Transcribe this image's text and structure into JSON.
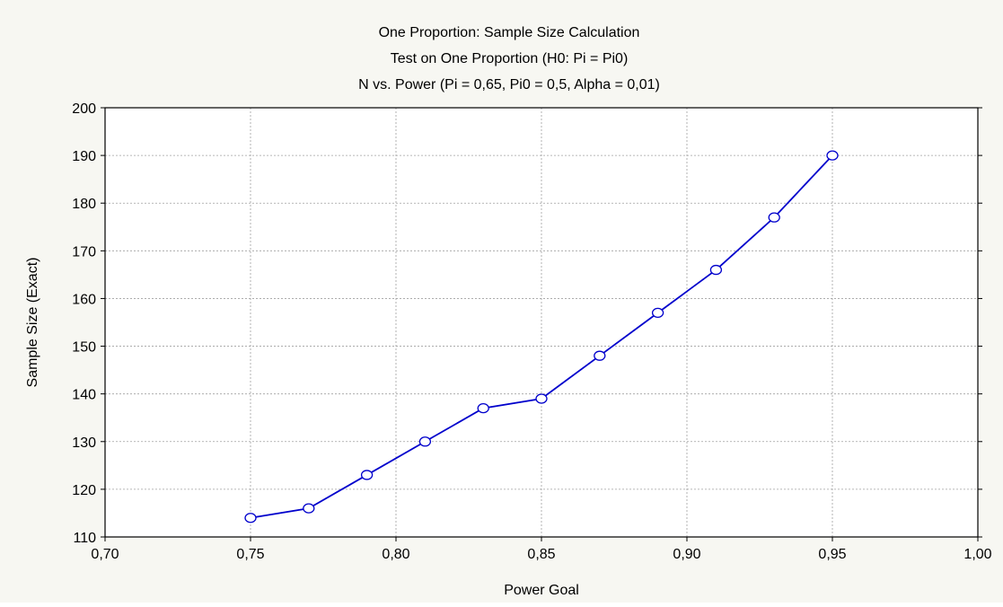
{
  "chart_data": {
    "type": "line",
    "titles": [
      "One Proportion: Sample Size Calculation",
      "Test on One Proportion (H0:  Pi = Pi0)",
      "N vs. Power (Pi = 0,65, Pi0 = 0,5, Alpha = 0,01)"
    ],
    "xlabel": "Power Goal",
    "ylabel": "Sample Size (Exact)",
    "xlim": [
      0.7,
      1.0
    ],
    "ylim": [
      110,
      200
    ],
    "x_ticks": [
      "0,70",
      "0,75",
      "0,80",
      "0,85",
      "0,90",
      "0,95",
      "1,00"
    ],
    "y_ticks": [
      "110",
      "120",
      "130",
      "140",
      "150",
      "160",
      "170",
      "180",
      "190",
      "200"
    ],
    "grid": true,
    "series": [
      {
        "color": "#0000cc",
        "x": [
          0.75,
          0.77,
          0.79,
          0.81,
          0.83,
          0.85,
          0.87,
          0.89,
          0.91,
          0.93,
          0.95
        ],
        "y": [
          114,
          116,
          123,
          130,
          137,
          139,
          148,
          157,
          166,
          177,
          190
        ]
      }
    ]
  },
  "colors": {
    "background": "#f7f7f2",
    "plot_area": "#ffffff",
    "grid": "#a0a0a0",
    "line": "#0000cc"
  }
}
